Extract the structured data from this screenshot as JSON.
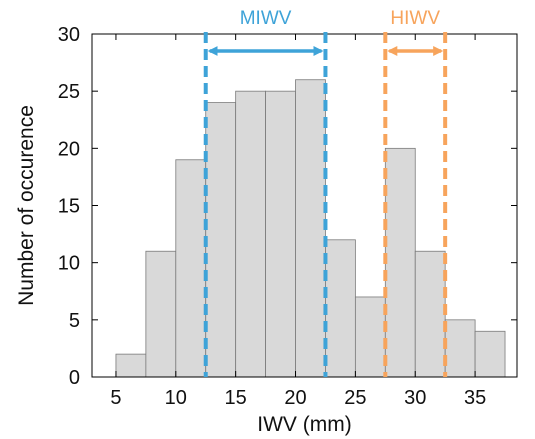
{
  "chart_data": {
    "type": "bar",
    "xlabel": "IWV (mm)",
    "ylabel": "Number of occurence",
    "xlim": [
      3,
      38.5
    ],
    "ylim": [
      0,
      30
    ],
    "xticks": [
      5,
      10,
      15,
      20,
      25,
      30,
      35
    ],
    "yticks": [
      0,
      5,
      10,
      15,
      20,
      25,
      30
    ],
    "grid": false,
    "bin_width": 2.5,
    "bins": [
      {
        "x_center": 6.25,
        "value": 2
      },
      {
        "x_center": 8.75,
        "value": 11
      },
      {
        "x_center": 11.25,
        "value": 19
      },
      {
        "x_center": 13.75,
        "value": 24
      },
      {
        "x_center": 16.25,
        "value": 25
      },
      {
        "x_center": 18.75,
        "value": 25
      },
      {
        "x_center": 21.25,
        "value": 26
      },
      {
        "x_center": 23.75,
        "value": 12
      },
      {
        "x_center": 26.25,
        "value": 7
      },
      {
        "x_center": 28.75,
        "value": 20
      },
      {
        "x_center": 31.25,
        "value": 11
      },
      {
        "x_center": 33.75,
        "value": 5
      },
      {
        "x_center": 36.25,
        "value": 4
      }
    ],
    "bar_color": "#d9d9d9",
    "bar_edge_color": "#7a7a7a",
    "annotations": [
      {
        "label": "MIWV",
        "x_start": 12.5,
        "x_end": 22.5,
        "color": "#3ea3d8"
      },
      {
        "label": "HIWV",
        "x_start": 27.5,
        "x_end": 32.5,
        "color": "#f7a45c"
      }
    ]
  }
}
